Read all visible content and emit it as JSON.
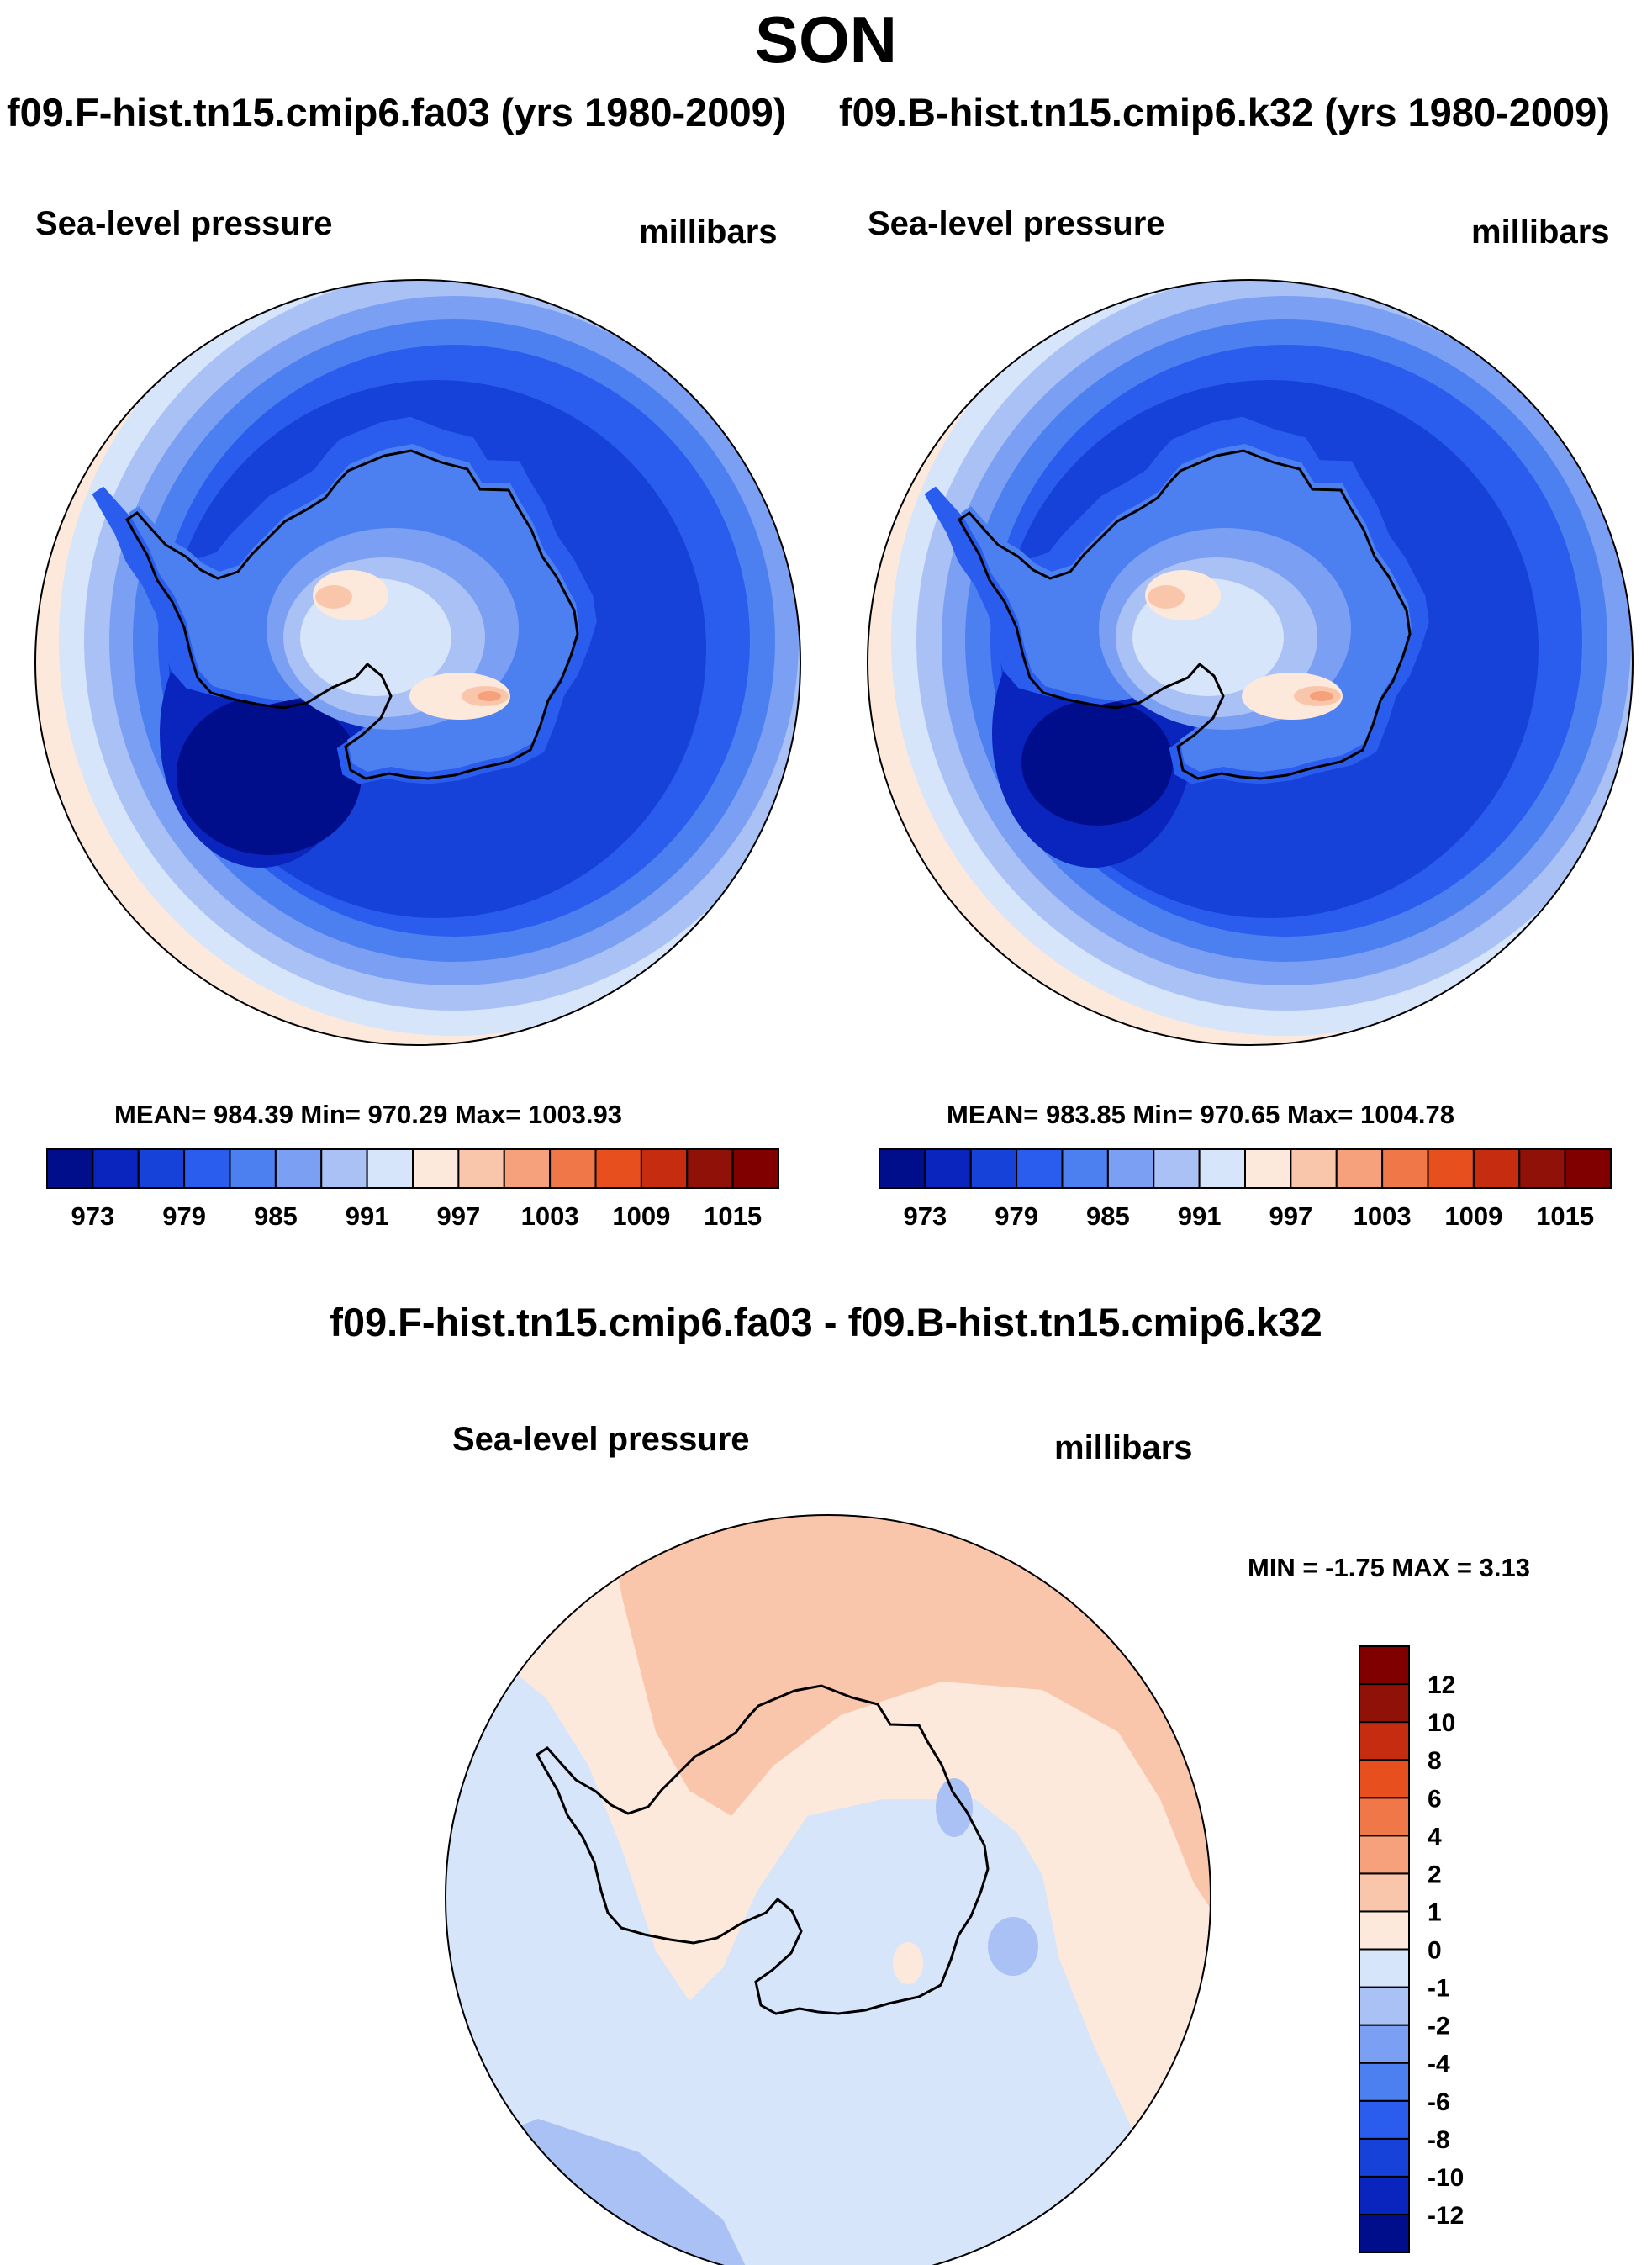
{
  "figure": {
    "season": "SON",
    "case_a": "f09.F-hist.tn15.cmip6.fa03 (yrs 1980-2009)",
    "case_b": "f09.B-hist.tn15.cmip6.k32 (yrs 1980-2009)",
    "diff_title": "f09.F-hist.tn15.cmip6.fa03 - f09.B-hist.tn15.cmip6.k32"
  },
  "panels": {
    "left": {
      "variable": "Sea-level pressure",
      "units": "millibars",
      "stats": "MEAN= 984.39  Min= 970.29  Max= 1003.93"
    },
    "right": {
      "variable": "Sea-level pressure",
      "units": "millibars",
      "stats": "MEAN= 983.85  Min= 970.65  Max= 1004.78"
    },
    "diff": {
      "variable": "Sea-level pressure",
      "units": "millibars",
      "stats": "MIN =  -1.75 MAX =   3.13"
    }
  },
  "chart_data": [
    {
      "type": "map",
      "projection": "south-polar-stereographic",
      "title": "f09.F-hist.tn15.cmip6.fa03 (yrs 1980-2009)",
      "variable": "Sea-level pressure",
      "units": "millibars",
      "mean": 984.39,
      "min": 970.29,
      "max": 1003.93,
      "contour_levels": [
        973,
        976,
        979,
        982,
        985,
        988,
        991,
        994,
        997,
        1000,
        1003,
        1006,
        1009,
        1012,
        1015
      ],
      "tick_labels": [
        "973",
        "979",
        "985",
        "991",
        "997",
        "1003",
        "1009",
        "1015"
      ],
      "colors": [
        "#000e8c",
        "#0a25bd",
        "#1742da",
        "#2a5ded",
        "#4c80f0",
        "#7b9ff2",
        "#a9c1f5",
        "#d6e5fa",
        "#fde9dc",
        "#fac6ab",
        "#f6a07c",
        "#f07748",
        "#e74f1f",
        "#c52c10",
        "#8f1108",
        "#800000"
      ]
    },
    {
      "type": "map",
      "projection": "south-polar-stereographic",
      "title": "f09.B-hist.tn15.cmip6.k32 (yrs 1980-2009)",
      "variable": "Sea-level pressure",
      "units": "millibars",
      "mean": 983.85,
      "min": 970.65,
      "max": 1004.78,
      "contour_levels": [
        973,
        976,
        979,
        982,
        985,
        988,
        991,
        994,
        997,
        1000,
        1003,
        1006,
        1009,
        1012,
        1015
      ],
      "tick_labels": [
        "973",
        "979",
        "985",
        "991",
        "997",
        "1003",
        "1009",
        "1015"
      ]
    },
    {
      "type": "map",
      "projection": "south-polar-stereographic",
      "title": "f09.F-hist.tn15.cmip6.fa03 - f09.B-hist.tn15.cmip6.k32",
      "variable": "Sea-level pressure",
      "units": "millibars",
      "min": -1.75,
      "max": 3.13,
      "contour_levels": [
        -12,
        -10,
        -8,
        -6,
        -4,
        -2,
        -1,
        0,
        1,
        2,
        4,
        6,
        8,
        10,
        12
      ],
      "tick_labels": [
        "-12",
        "-10",
        "-8",
        "-6",
        "-4",
        "-2",
        "-1",
        "0",
        "1",
        "2",
        "4",
        "6",
        "8",
        "10",
        "12"
      ],
      "colors": [
        "#000e8c",
        "#0a25bd",
        "#1742da",
        "#2a5ded",
        "#4c80f0",
        "#7b9ff2",
        "#a9c1f5",
        "#d6e5fa",
        "#fde9dc",
        "#fac6ab",
        "#f6a07c",
        "#f07748",
        "#e74f1f",
        "#c52c10",
        "#8f1108",
        "#800000"
      ]
    }
  ]
}
